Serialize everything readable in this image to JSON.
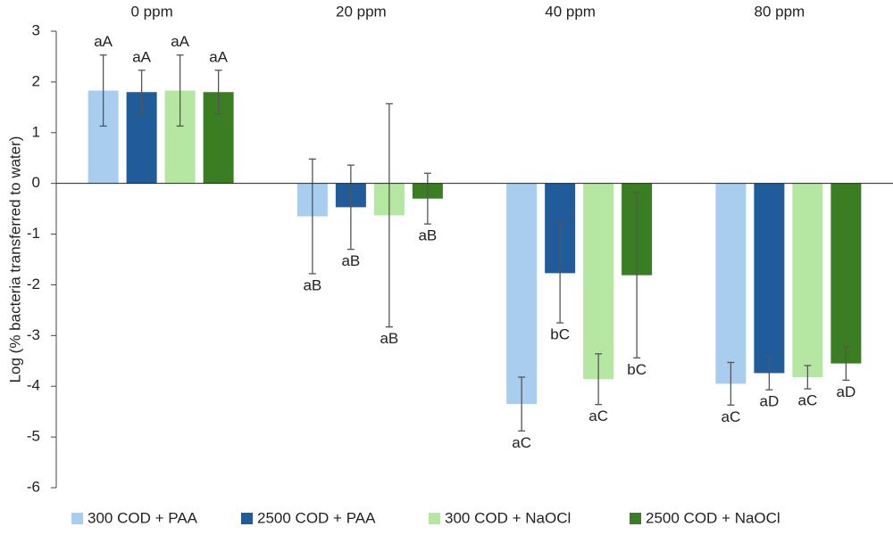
{
  "chart_data": {
    "type": "bar",
    "y_label": "Log (% bacteria transferred to water)",
    "categories": [
      "0 ppm",
      "20 ppm",
      "40 ppm",
      "80 ppm"
    ],
    "ylim": [
      -6,
      3
    ],
    "yticks": [
      -6,
      -5,
      -4,
      -3,
      -2,
      -1,
      0,
      1,
      2,
      3
    ],
    "legend": "bottom",
    "series": [
      {
        "name": "300 COD + PAA",
        "color": "#a9cdef",
        "values": [
          1.83,
          -0.65,
          -4.35,
          -3.95
        ],
        "errors": [
          0.7,
          1.13,
          0.53,
          0.42
        ],
        "letters": [
          "aA",
          "aB",
          "aC",
          "aC"
        ]
      },
      {
        "name": "2500 COD + PAA",
        "color": "#1f5c99",
        "values": [
          1.8,
          -0.47,
          -1.77,
          -3.74
        ],
        "errors": [
          0.43,
          0.83,
          0.98,
          0.33
        ],
        "letters": [
          "aA",
          "aB",
          "bC",
          "aD"
        ]
      },
      {
        "name": "300 COD + NaOCl",
        "color": "#b5e6a2",
        "values": [
          1.83,
          -0.63,
          -3.86,
          -3.82
        ],
        "errors": [
          0.7,
          2.2,
          0.5,
          0.23
        ],
        "letters": [
          "aA",
          "aB",
          "aC",
          "aC"
        ]
      },
      {
        "name": "2500 COD + NaOCl",
        "color": "#3a7d23",
        "values": [
          1.8,
          -0.3,
          -1.81,
          -3.55
        ],
        "errors": [
          0.43,
          0.5,
          1.63,
          0.33
        ],
        "letters": [
          "aA",
          "aB",
          "bC",
          "aD"
        ]
      }
    ]
  }
}
